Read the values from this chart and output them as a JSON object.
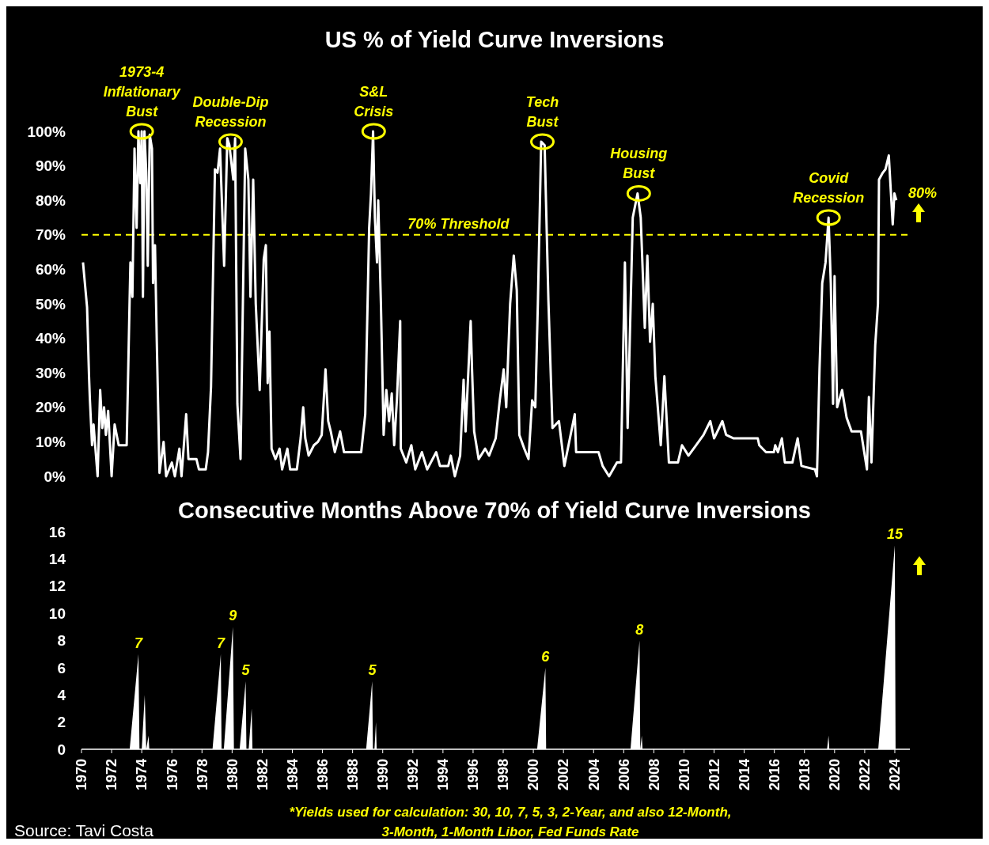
{
  "chart_data": [
    {
      "type": "line",
      "title": "US % of Yield Curve Inversions",
      "xlim": [
        1970,
        2025
      ],
      "ylim": [
        0,
        100
      ],
      "tick_labels": "y",
      "grid": false,
      "yticks": [
        {
          "value": 0,
          "label": "0%"
        },
        {
          "value": 10,
          "label": "10%"
        },
        {
          "value": 20,
          "label": "20%"
        },
        {
          "value": 30,
          "label": "30%"
        },
        {
          "value": 40,
          "label": "40%"
        },
        {
          "value": 50,
          "label": "50%"
        },
        {
          "value": 60,
          "label": "60%"
        },
        {
          "value": 70,
          "label": "70%"
        },
        {
          "value": 80,
          "label": "80%"
        },
        {
          "value": 90,
          "label": "90%"
        },
        {
          "value": 100,
          "label": "100%"
        }
      ],
      "ref_lines": [
        {
          "axis": "y",
          "value": 70,
          "label": "70% Threshold",
          "color": "#ffff00",
          "line_style": "dashed"
        }
      ],
      "annotations": [
        {
          "text": "1973-4\nInflationary\nBust",
          "x": 1974.0,
          "y": 100
        },
        {
          "text": "Double-Dip\nRecession",
          "x": 1979.9,
          "y": 97
        },
        {
          "text": "S&L\nCrisis",
          "x": 1989.4,
          "y": 100
        },
        {
          "text": "Tech\nBust",
          "x": 2000.6,
          "y": 97
        },
        {
          "text": "Housing\nBust",
          "x": 2007.0,
          "y": 82
        },
        {
          "text": "Covid\nRecession",
          "x": 2019.6,
          "y": 75
        },
        "80%"
      ],
      "series": [
        {
          "color": "#ffffff",
          "x": [
            1970.1,
            1970.37,
            1970.5,
            1970.55,
            1970.7,
            1970.8,
            1971.07,
            1971.24,
            1971.38,
            1971.5,
            1971.62,
            1971.77,
            1972.0,
            1972.2,
            1972.47,
            1973.0,
            1973.2,
            1973.25,
            1973.38,
            1973.52,
            1973.66,
            1973.78,
            1973.9,
            1974.0,
            1974.08,
            1974.18,
            1974.3,
            1974.4,
            1974.53,
            1974.68,
            1974.75,
            1974.88,
            1975.0,
            1975.18,
            1975.45,
            1975.62,
            1976.0,
            1976.2,
            1976.5,
            1976.64,
            1976.95,
            1977.1,
            1977.63,
            1977.8,
            1978.25,
            1978.4,
            1978.6,
            1978.86,
            1979.03,
            1979.2,
            1979.47,
            1979.68,
            1979.82,
            1980.08,
            1980.2,
            1980.35,
            1980.56,
            1980.87,
            1981.08,
            1981.22,
            1981.4,
            1981.57,
            1981.83,
            1982.1,
            1982.24,
            1982.36,
            1982.48,
            1982.62,
            1982.88,
            1983.15,
            1983.32,
            1983.67,
            1983.85,
            1984.3,
            1984.55,
            1984.72,
            1984.86,
            1985.08,
            1985.43,
            1985.7,
            1985.95,
            1986.2,
            1986.38,
            1986.55,
            1986.82,
            1987.17,
            1987.43,
            1987.9,
            1988.22,
            1988.57,
            1988.84,
            1989.1,
            1989.22,
            1989.36,
            1989.48,
            1989.62,
            1989.7,
            1989.88,
            1990.06,
            1990.24,
            1990.42,
            1990.6,
            1990.76,
            1990.94,
            1991.16,
            1991.2,
            1991.56,
            1991.9,
            1992.16,
            1992.6,
            1992.95,
            1993.55,
            1993.8,
            1994.35,
            1994.52,
            1994.79,
            1995.14,
            1995.37,
            1995.5,
            1995.84,
            1995.93,
            1996.07,
            1996.37,
            1996.8,
            1997.06,
            1997.5,
            1997.77,
            1998.03,
            1998.2,
            1998.46,
            1998.7,
            1998.9,
            1999.07,
            1999.4,
            1999.68,
            1999.92,
            2000.13,
            2000.3,
            2000.52,
            2000.75,
            2001.0,
            2001.27,
            2001.7,
            2002.06,
            2002.75,
            2002.84,
            2004.33,
            2004.6,
            2005.03,
            2005.55,
            2005.82,
            2006.08,
            2006.26,
            2006.6,
            2006.92,
            2007.13,
            2007.4,
            2007.57,
            2007.75,
            2007.93,
            2008.1,
            2008.46,
            2008.7,
            2009.0,
            2009.6,
            2009.87,
            2010.3,
            2010.8,
            2011.3,
            2011.75,
            2012.0,
            2012.55,
            2012.8,
            2013.3,
            2014.9,
            2015.0,
            2015.45,
            2015.97,
            2016.06,
            2016.24,
            2016.5,
            2016.7,
            2017.2,
            2017.55,
            2017.8,
            2018.7,
            2018.83,
            2019.0,
            2019.18,
            2019.4,
            2019.6,
            2019.75,
            2019.9,
            2020.0,
            2020.17,
            2020.5,
            2020.8,
            2021.13,
            2021.75,
            2022.15,
            2022.28,
            2022.45,
            2022.7,
            2022.88,
            2022.95,
            2023.2,
            2023.38,
            2023.6,
            2023.86,
            2023.97,
            2024.1
          ],
          "values": [
            62,
            49,
            29,
            23,
            9,
            15,
            0,
            25,
            14,
            20,
            12,
            19,
            0,
            15,
            9,
            9,
            52,
            62,
            52,
            95,
            72,
            100,
            85,
            100,
            52,
            100,
            88,
            61,
            99,
            95,
            56,
            67,
            39,
            1,
            10,
            0,
            4,
            0,
            8,
            0,
            18,
            5,
            5,
            2,
            2,
            7,
            26,
            89,
            88,
            95,
            61,
            98,
            96,
            86,
            98,
            21,
            5,
            95,
            86,
            52,
            86,
            50,
            25,
            63,
            67,
            27,
            42,
            8,
            5,
            8,
            2,
            8,
            2,
            2,
            11,
            20,
            11,
            6,
            9,
            10,
            12,
            31,
            16,
            13,
            7,
            13,
            7,
            7,
            7,
            7,
            18,
            72,
            82,
            100,
            75,
            62,
            80,
            50,
            12,
            25,
            16,
            24,
            9,
            22,
            45,
            8,
            4,
            9,
            2,
            7,
            2,
            7,
            3,
            3,
            6,
            0,
            6,
            28,
            13,
            45,
            31,
            13,
            5,
            8,
            6,
            11,
            22,
            31,
            20,
            50,
            64,
            54,
            12,
            8,
            5,
            22,
            20,
            50,
            97,
            96,
            51,
            14,
            16,
            3,
            18,
            7,
            7,
            3,
            0,
            4,
            4,
            62,
            14,
            75,
            82,
            75,
            43,
            64,
            39,
            50,
            29,
            9,
            29,
            4,
            4,
            9,
            6,
            9,
            12,
            16,
            11,
            16,
            12,
            11,
            11,
            9,
            7,
            7,
            9,
            7,
            11,
            4,
            4,
            11,
            3,
            2,
            0,
            31,
            56,
            62,
            75,
            56,
            21,
            58,
            20,
            25,
            17,
            13,
            13,
            2,
            23,
            4,
            38,
            50,
            86,
            88,
            89,
            93,
            73,
            82,
            80
          ]
        }
      ]
    },
    {
      "type": "area",
      "title": "Consecutive Months Above 70% of Yield Curve Inversions",
      "xlim": [
        1970,
        2025
      ],
      "ylim": [
        0,
        16
      ],
      "grid": false,
      "yticks": [
        0,
        2,
        4,
        6,
        8,
        10,
        12,
        14,
        16
      ],
      "xticks": [
        1970,
        1972,
        1974,
        1976,
        1978,
        1980,
        1982,
        1984,
        1986,
        1988,
        1990,
        1992,
        1994,
        1996,
        1998,
        2000,
        2002,
        2004,
        2006,
        2008,
        2010,
        2012,
        2014,
        2016,
        2018,
        2020,
        2022,
        2024
      ],
      "annotations": [
        "*Yields used for calculation: 30, 10, 7, 5, 3, 2-Year, and also 12-Month,\n3-Month, 1-Month Libor, Fed Funds Rate",
        "Source: Tavi Costa"
      ],
      "series": [
        {
          "color": "#ffffff",
          "x": [
            1970,
            1973.2,
            1973.78,
            1973.85,
            1974.0,
            1974.2,
            1974.3,
            1974.45,
            1974.5,
            1978.7,
            1979.25,
            1979.3,
            1979.45,
            1980.05,
            1980.12,
            1980.5,
            1980.9,
            1980.95,
            1981.1,
            1981.3,
            1981.35,
            1988.9,
            1989.3,
            1989.35,
            1989.45,
            1989.55,
            1989.6,
            2000.25,
            2000.8,
            2000.85,
            2006.45,
            2007.05,
            2007.1,
            2007.2,
            2007.25,
            2019.5,
            2019.6,
            2019.65,
            2022.9,
            2024.0,
            2024.05
          ],
          "values": [
            0,
            0,
            7,
            0,
            0,
            4,
            0,
            1,
            0,
            0,
            7,
            0,
            0,
            9,
            0,
            0,
            5,
            0,
            0,
            3,
            0,
            0,
            5,
            0,
            0,
            2,
            0,
            0,
            6,
            0,
            0,
            8,
            0,
            1,
            0,
            0,
            1,
            0,
            0,
            15,
            0
          ],
          "value_labels": [
            null,
            null,
            "7",
            null,
            null,
            null,
            null,
            null,
            null,
            null,
            "7",
            null,
            null,
            "9",
            null,
            null,
            "5",
            null,
            null,
            null,
            null,
            null,
            "5",
            null,
            null,
            null,
            null,
            null,
            "6",
            null,
            null,
            "8",
            null,
            null,
            null,
            null,
            null,
            null,
            null,
            "15",
            null
          ]
        }
      ]
    }
  ]
}
